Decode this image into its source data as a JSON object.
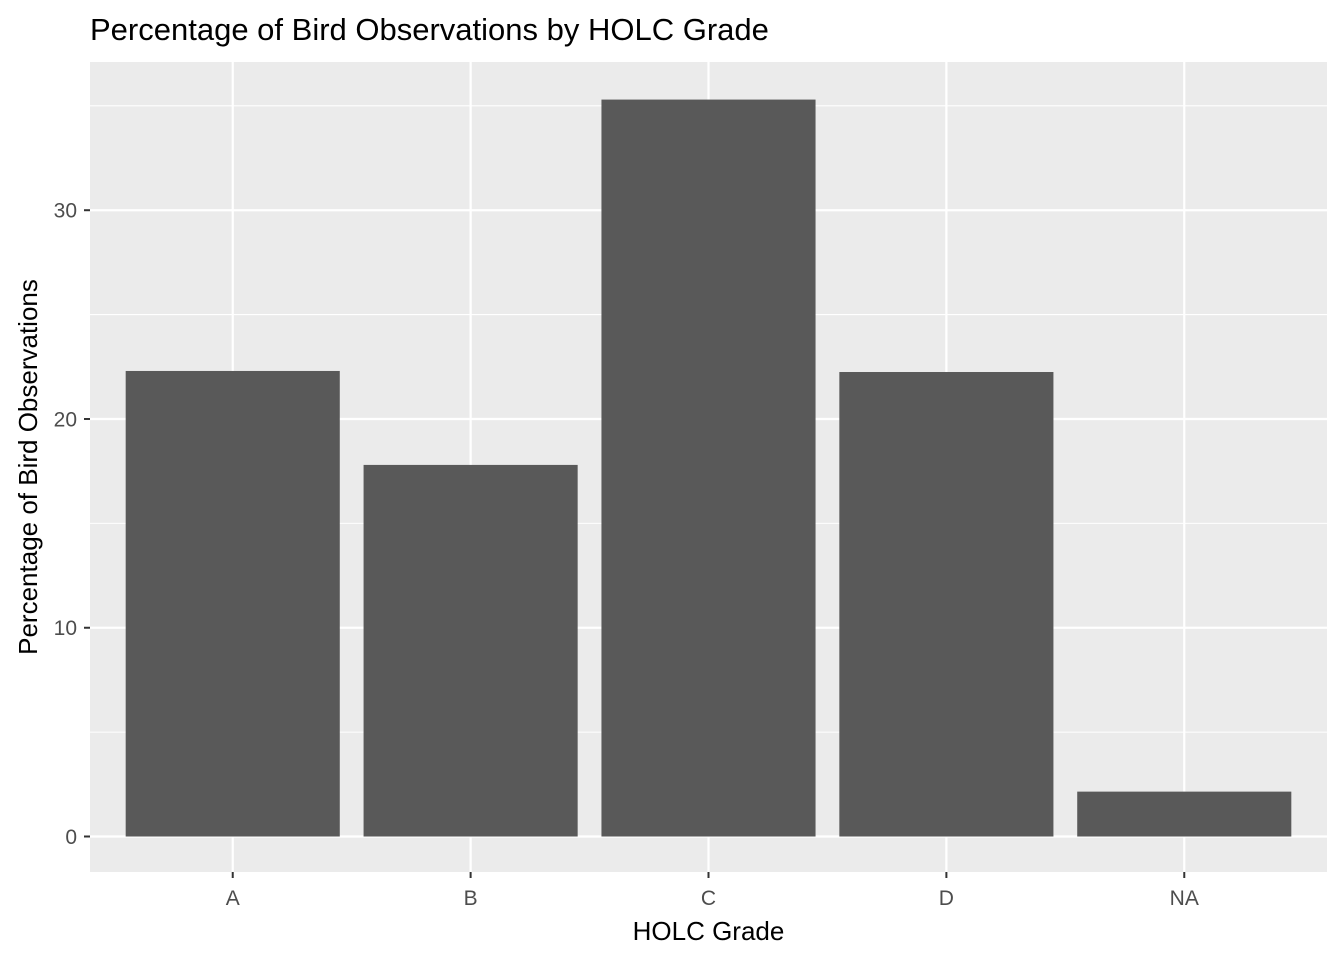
{
  "chart_data": {
    "type": "bar",
    "title": "Percentage of Bird Observations by HOLC Grade",
    "xlabel": "HOLC Grade",
    "ylabel": "Percentage of Bird Observations",
    "categories": [
      "A",
      "B",
      "C",
      "D",
      "NA"
    ],
    "values": [
      22.3,
      17.8,
      35.3,
      22.25,
      2.15
    ],
    "ylim": [
      -1.7,
      37.1
    ],
    "y_major_ticks": [
      0,
      10,
      20,
      30
    ],
    "y_minor_ticks": [
      5,
      15,
      25,
      35
    ],
    "grid": true,
    "legend": "none"
  },
  "colors": {
    "panel_background": "#ebebeb",
    "grid_major": "#ffffff",
    "bar_fill": "#595959",
    "tick_mark": "#333333",
    "tick_label": "#4d4d4d",
    "text": "#000000"
  }
}
